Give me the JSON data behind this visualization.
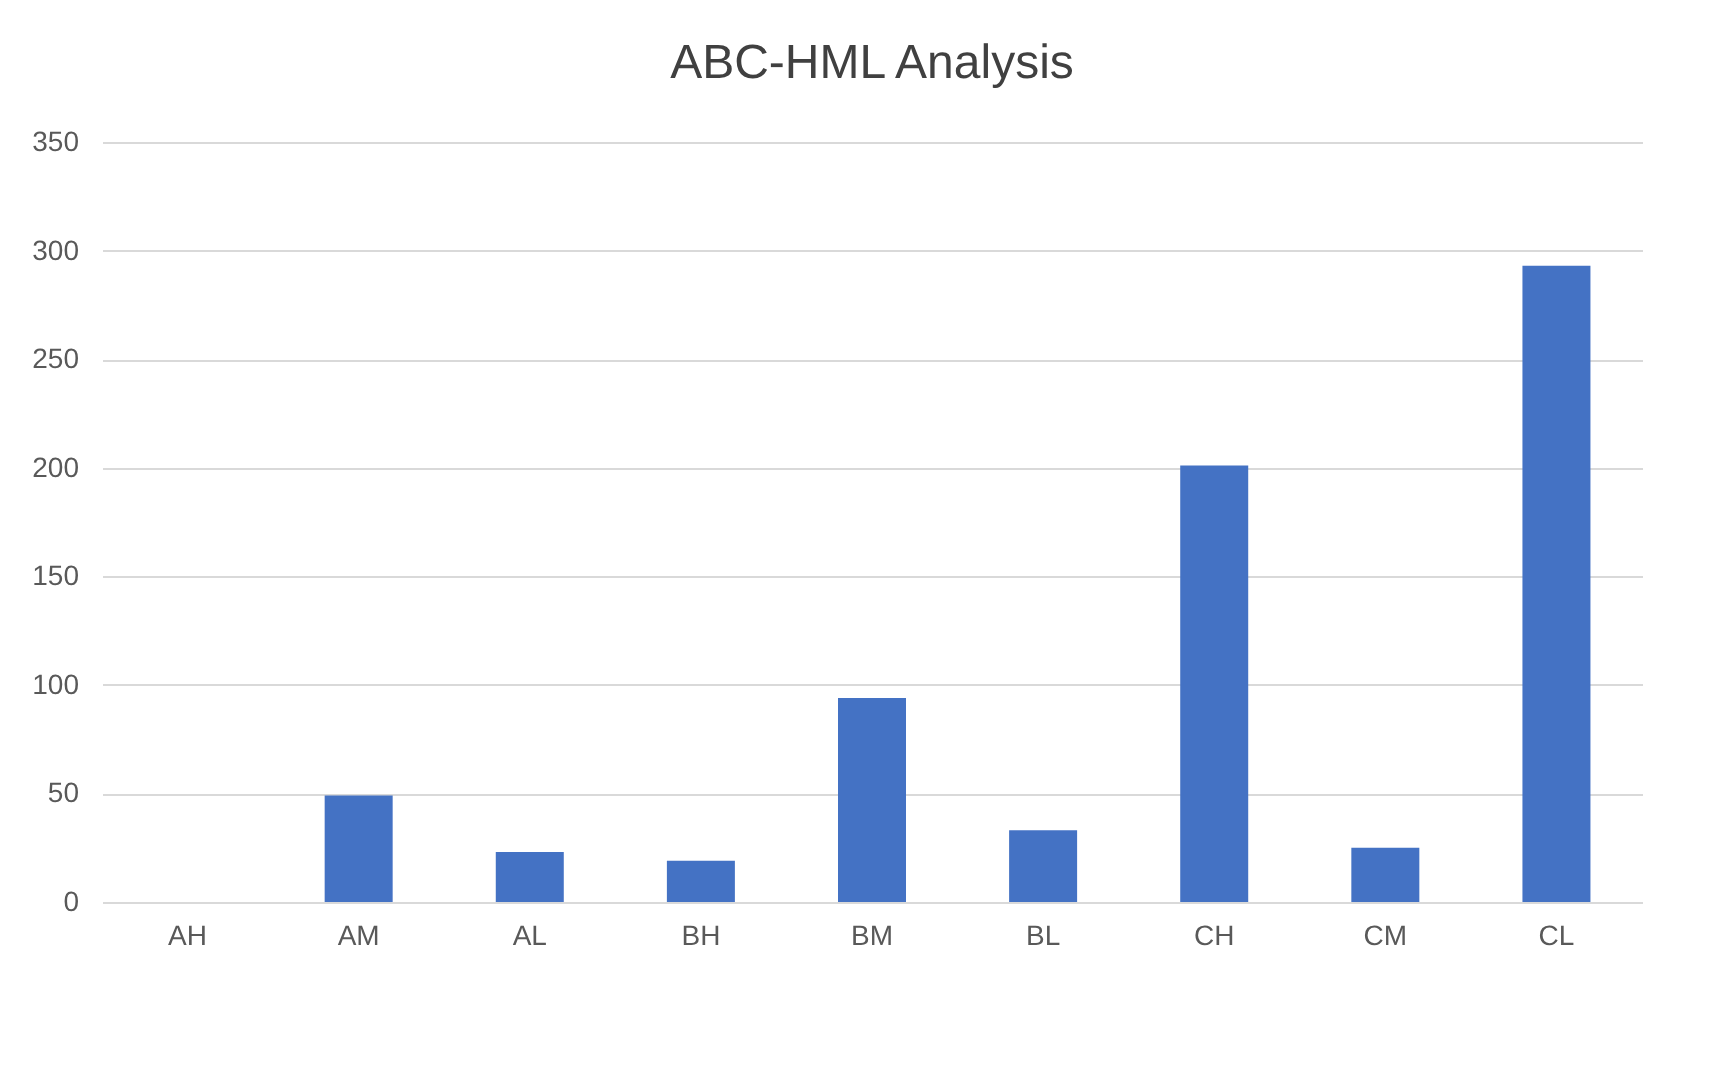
{
  "chart_data": {
    "type": "bar",
    "title": "ABC-HML Analysis",
    "categories": [
      "AH",
      "AM",
      "AL",
      "BH",
      "BM",
      "BL",
      "CH",
      "CM",
      "CL"
    ],
    "values": [
      0,
      49,
      23,
      19,
      94,
      33,
      201,
      25,
      293
    ],
    "color": "#4472c4",
    "ylim": [
      0,
      350
    ],
    "yticks": [
      0,
      50,
      100,
      150,
      200,
      250,
      300,
      350
    ],
    "grid": "y"
  }
}
